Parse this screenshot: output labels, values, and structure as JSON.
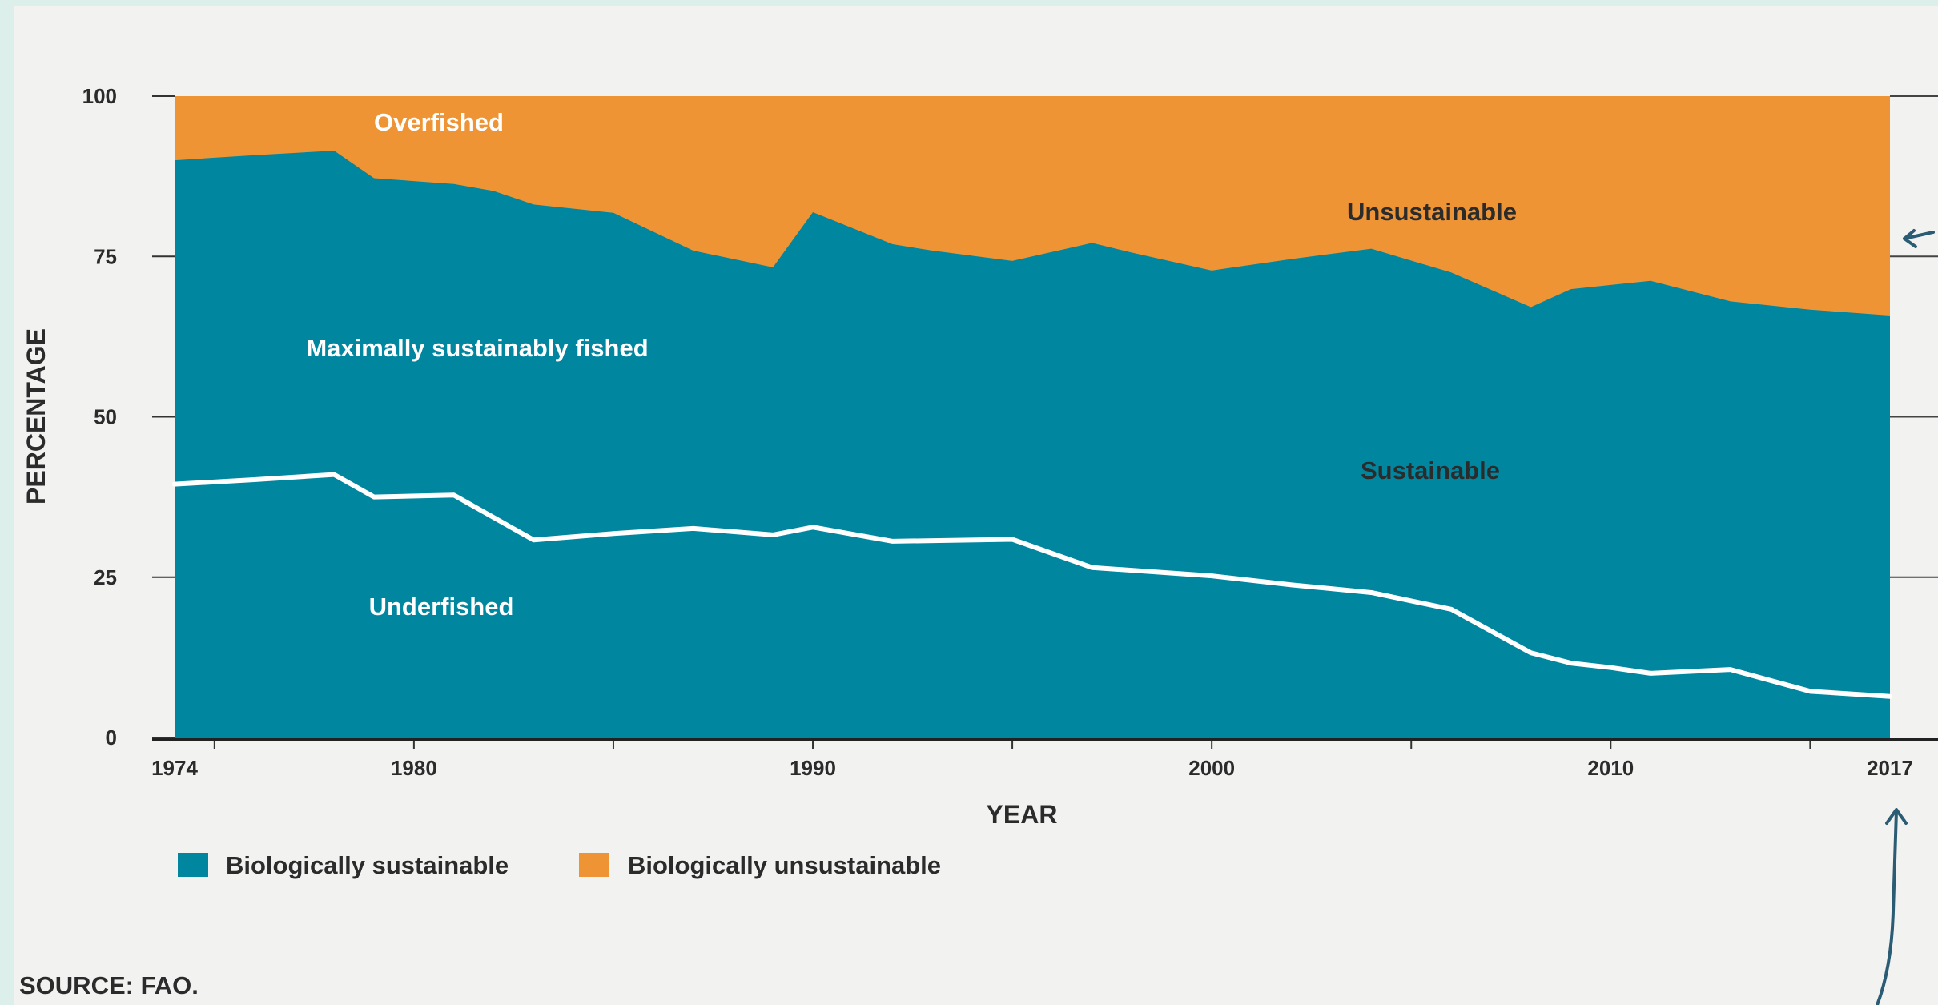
{
  "chart_data": {
    "type": "area",
    "x": [
      1974,
      1975,
      1976,
      1978,
      1979,
      1981,
      1982,
      1983,
      1985,
      1987,
      1989,
      1990,
      1992,
      1993,
      1995,
      1997,
      1998,
      2000,
      2002,
      2004,
      2006,
      2008,
      2009,
      2011,
      2013,
      2015,
      2017
    ],
    "series": [
      {
        "name": "Biologically sustainable",
        "color": "#00869f",
        "values": [
          90,
          90.4,
          90.8,
          91.5,
          87.2,
          86.3,
          85.2,
          83.1,
          81.8,
          75.9,
          73.3,
          81.9,
          76.9,
          75.9,
          74.3,
          77.1,
          75.6,
          72.8,
          74.6,
          76.2,
          72.5,
          67.1,
          69.9,
          71.2,
          68.0,
          66.7,
          65.8
        ]
      },
      {
        "name": "Biologically unsustainable",
        "color": "#ef9435",
        "values": [
          10,
          9.6,
          9.2,
          8.5,
          12.8,
          13.7,
          14.8,
          16.9,
          18.2,
          24.1,
          26.7,
          18.1,
          23.1,
          24.1,
          25.7,
          22.9,
          24.4,
          27.2,
          25.4,
          23.8,
          27.5,
          32.9,
          30.1,
          28.8,
          32.0,
          33.3,
          34.2
        ]
      }
    ],
    "underfished_line": {
      "x": [
        1974,
        1976,
        1978,
        1979,
        1981,
        1983,
        1985,
        1987,
        1989,
        1990,
        1992,
        1995,
        1997,
        2000,
        2002,
        2004,
        2006,
        2008,
        2009,
        2010,
        2011,
        2013,
        2015,
        2017
      ],
      "values": [
        39.5,
        40.2,
        41.0,
        37.5,
        37.8,
        30.8,
        31.8,
        32.6,
        31.6,
        32.8,
        30.6,
        30.9,
        26.5,
        25.2,
        23.8,
        22.6,
        20.0,
        13.2,
        11.6,
        10.9,
        10.0,
        10.6,
        7.2,
        6.4
      ]
    },
    "annotations": {
      "overfished": "Overfished",
      "unsustainable": "Unsustainable",
      "maximally": "Maximally sustainably fished",
      "sustainable": "Sustainable",
      "underfished": "Underfished"
    },
    "xlabel": "YEAR",
    "ylabel": "PERCENTAGE",
    "xticks": [
      1974,
      1980,
      1990,
      2000,
      2010,
      2017
    ],
    "yticks": [
      0,
      25,
      50,
      75,
      100
    ],
    "ylim": [
      0,
      100
    ],
    "xlim": [
      1974,
      2017
    ],
    "grid": false,
    "legend": {
      "placement": "bottom-left",
      "items": [
        {
          "label": "Biologically sustainable",
          "color": "#00869f"
        },
        {
          "label": "Biologically unsustainable",
          "color": "#ef9435"
        }
      ]
    },
    "source": "SOURCE: FAO."
  }
}
